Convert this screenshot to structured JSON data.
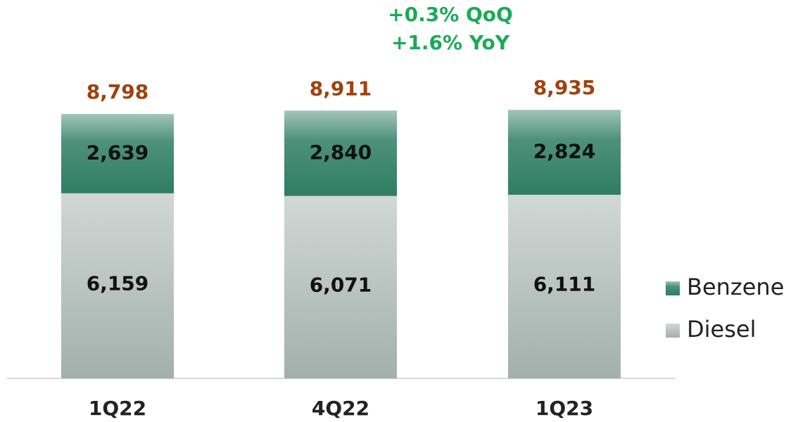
{
  "chart_data": {
    "type": "stacked_bar",
    "annotations": [
      "+0.3% QoQ",
      "+1.6% YoY"
    ],
    "categories": [
      "1Q22",
      "4Q22",
      "1Q23"
    ],
    "series": [
      {
        "name": "Diesel",
        "color": "#a2b0ab",
        "values": [
          6159,
          6071,
          6111
        ],
        "value_labels": [
          "6,159",
          "6,071",
          "6,111"
        ]
      },
      {
        "name": "Benzene",
        "color": "#2f7d62",
        "values": [
          2639,
          2840,
          2824
        ],
        "value_labels": [
          "2,639",
          "2,840",
          "2,824"
        ]
      }
    ],
    "totals": [
      8798,
      8911,
      8935
    ],
    "total_labels": [
      "8,798",
      "8,911",
      "8,935"
    ],
    "total_color": "#a0410d",
    "annotation_color": "#1aaa55",
    "legend": "right"
  }
}
